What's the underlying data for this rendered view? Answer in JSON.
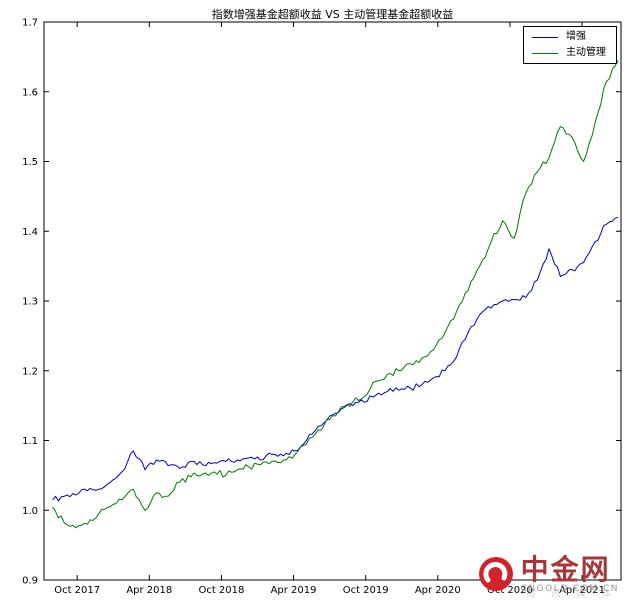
{
  "chart_data": {
    "type": "line",
    "title": "指数增强基金超额收益 VS 主动管理基金超额收益",
    "xlabel": "",
    "ylabel": "",
    "xlim": [
      2017.52,
      2021.52
    ],
    "ylim": [
      0.9,
      1.7
    ],
    "grid": false,
    "legend_position": "upper right",
    "x_ticks": [
      {
        "t": 2017.75,
        "label": "Oct 2017"
      },
      {
        "t": 2018.25,
        "label": "Apr 2018"
      },
      {
        "t": 2018.75,
        "label": "Oct 2018"
      },
      {
        "t": 2019.25,
        "label": "Apr 2019"
      },
      {
        "t": 2019.75,
        "label": "Oct 2019"
      },
      {
        "t": 2020.25,
        "label": "Apr 2020"
      },
      {
        "t": 2020.75,
        "label": "Oct 2020"
      },
      {
        "t": 2021.25,
        "label": "Apr 2021"
      }
    ],
    "y_ticks": [
      {
        "v": 0.9,
        "label": "0.9"
      },
      {
        "v": 1.0,
        "label": "1.0"
      },
      {
        "v": 1.1,
        "label": "1.1"
      },
      {
        "v": 1.2,
        "label": "1.2"
      },
      {
        "v": 1.3,
        "label": "1.3"
      },
      {
        "v": 1.4,
        "label": "1.4"
      },
      {
        "v": 1.5,
        "label": "1.5"
      },
      {
        "v": 1.6,
        "label": "1.6"
      },
      {
        "v": 1.7,
        "label": "1.7"
      }
    ],
    "x": [
      2017.58,
      2017.66,
      2017.74,
      2017.82,
      2017.9,
      2017.98,
      2018.06,
      2018.14,
      2018.22,
      2018.3,
      2018.38,
      2018.46,
      2018.54,
      2018.62,
      2018.7,
      2018.78,
      2018.86,
      2018.94,
      2019.02,
      2019.1,
      2019.18,
      2019.26,
      2019.34,
      2019.42,
      2019.5,
      2019.58,
      2019.66,
      2019.74,
      2019.82,
      2019.9,
      2019.98,
      2020.06,
      2020.14,
      2020.22,
      2020.3,
      2020.38,
      2020.46,
      2020.54,
      2020.62,
      2020.7,
      2020.78,
      2020.86,
      2020.94,
      2021.02,
      2021.1,
      2021.18,
      2021.26,
      2021.34,
      2021.42,
      2021.5
    ],
    "series": [
      {
        "name": "增强",
        "color": "#0000cc",
        "values": [
          1.015,
          1.02,
          1.022,
          1.028,
          1.03,
          1.04,
          1.055,
          1.085,
          1.058,
          1.072,
          1.064,
          1.06,
          1.07,
          1.065,
          1.068,
          1.07,
          1.072,
          1.075,
          1.072,
          1.08,
          1.078,
          1.085,
          1.1,
          1.12,
          1.135,
          1.145,
          1.15,
          1.155,
          1.165,
          1.17,
          1.172,
          1.175,
          1.18,
          1.19,
          1.2,
          1.22,
          1.255,
          1.28,
          1.29,
          1.3,
          1.302,
          1.305,
          1.33,
          1.375,
          1.335,
          1.345,
          1.355,
          1.385,
          1.41,
          1.42
        ]
      },
      {
        "name": "主动管理",
        "color": "#007a00",
        "values": [
          1.005,
          0.982,
          0.975,
          0.98,
          0.995,
          1.005,
          1.015,
          1.03,
          1.0,
          1.025,
          1.02,
          1.04,
          1.048,
          1.052,
          1.055,
          1.05,
          1.058,
          1.062,
          1.065,
          1.07,
          1.072,
          1.08,
          1.095,
          1.115,
          1.13,
          1.148,
          1.155,
          1.163,
          1.185,
          1.195,
          1.2,
          1.21,
          1.218,
          1.23,
          1.255,
          1.285,
          1.315,
          1.35,
          1.385,
          1.415,
          1.39,
          1.455,
          1.485,
          1.505,
          1.55,
          1.535,
          1.5,
          1.555,
          1.615,
          1.645
        ]
      }
    ]
  },
  "watermark": {
    "brand": "中金网",
    "domain": "CNGOLD.COM.CN",
    "tagline": "资 讯  媒 体",
    "logo_color": "#d2232a"
  }
}
